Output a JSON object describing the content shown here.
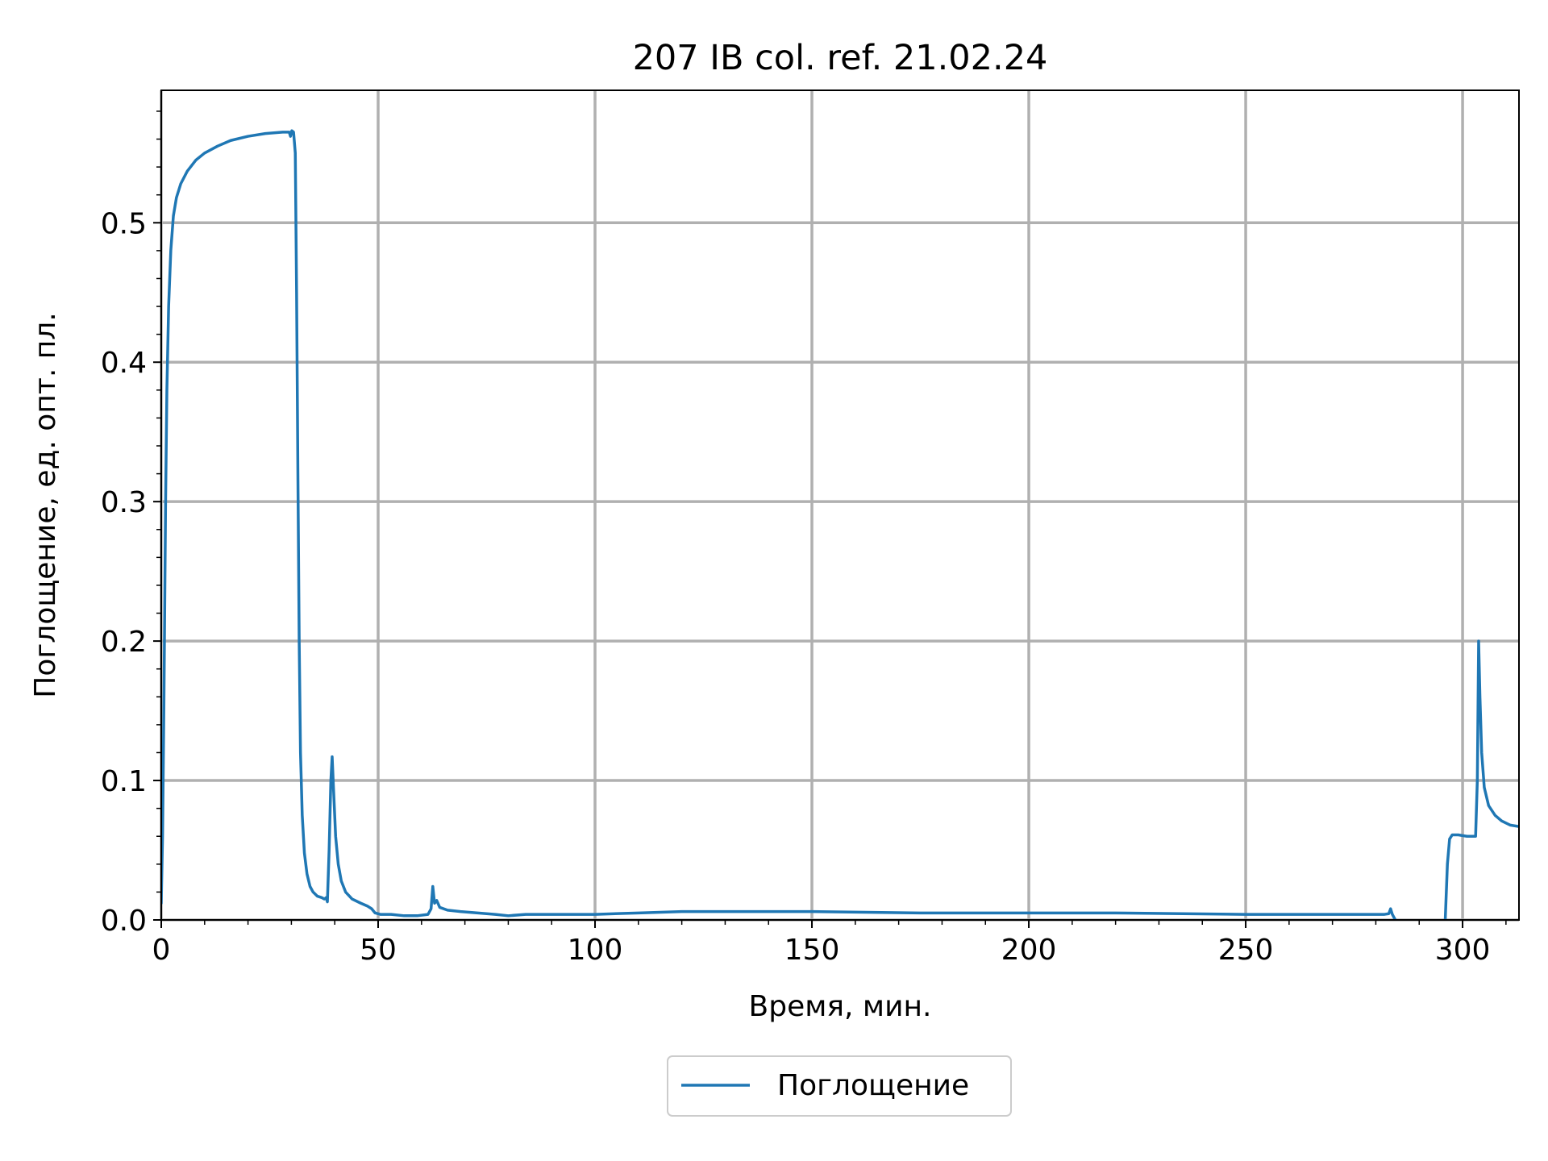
{
  "chart_data": {
    "type": "line",
    "title": "207 IB col. ref. 21.02.24",
    "xlabel": "Время, мин.",
    "ylabel": "Поглощение, ед. опт. пл.",
    "xlim": [
      0,
      313
    ],
    "ylim": [
      0,
      0.595
    ],
    "xticks": [
      0,
      50,
      100,
      150,
      200,
      250,
      300
    ],
    "xtick_labels": [
      "0",
      "50",
      "100",
      "150",
      "200",
      "250",
      "300"
    ],
    "yticks": [
      0.0,
      0.1,
      0.2,
      0.3,
      0.4,
      0.5
    ],
    "ytick_labels": [
      "0.0",
      "0.1",
      "0.2",
      "0.3",
      "0.4",
      "0.5"
    ],
    "x_minor_step": 10,
    "y_minor_step": 0.02,
    "grid": true,
    "legend_position": "bottom-center",
    "colors": {
      "series": "#1f77b4",
      "grid": "#b0b0b0",
      "axis": "#000000"
    },
    "series": [
      {
        "name": "Поглощение",
        "segments": [
          [
            [
              0.0,
              0.012
            ],
            [
              0.3,
              0.06
            ],
            [
              0.6,
              0.15
            ],
            [
              1.0,
              0.3
            ],
            [
              1.3,
              0.38
            ],
            [
              1.7,
              0.44
            ],
            [
              2.2,
              0.48
            ],
            [
              2.8,
              0.505
            ],
            [
              3.5,
              0.518
            ],
            [
              4.5,
              0.528
            ],
            [
              6.0,
              0.537
            ],
            [
              8.0,
              0.545
            ],
            [
              10.0,
              0.55
            ],
            [
              13.0,
              0.555
            ],
            [
              16.0,
              0.559
            ],
            [
              20.0,
              0.562
            ],
            [
              24.0,
              0.564
            ],
            [
              28.0,
              0.565
            ],
            [
              29.5,
              0.565
            ],
            [
              29.8,
              0.562
            ],
            [
              30.1,
              0.566
            ],
            [
              30.5,
              0.565
            ],
            [
              30.9,
              0.55
            ],
            [
              31.2,
              0.45
            ],
            [
              31.5,
              0.32
            ],
            [
              31.8,
              0.2
            ],
            [
              32.1,
              0.12
            ],
            [
              32.5,
              0.075
            ],
            [
              33.0,
              0.048
            ],
            [
              33.6,
              0.033
            ],
            [
              34.3,
              0.024
            ],
            [
              35.0,
              0.02
            ],
            [
              36.0,
              0.017
            ],
            [
              37.0,
              0.016
            ],
            [
              37.6,
              0.015
            ],
            [
              38.0,
              0.016
            ],
            [
              38.3,
              0.013
            ],
            [
              38.7,
              0.05
            ],
            [
              39.1,
              0.1
            ],
            [
              39.4,
              0.117
            ],
            [
              39.7,
              0.095
            ],
            [
              40.2,
              0.06
            ],
            [
              40.8,
              0.04
            ],
            [
              41.5,
              0.028
            ],
            [
              42.5,
              0.02
            ],
            [
              44.0,
              0.015
            ],
            [
              46.0,
              0.012
            ],
            [
              47.5,
              0.01
            ],
            [
              48.5,
              0.008
            ],
            [
              49.3,
              0.005
            ],
            [
              50.5,
              0.004
            ],
            [
              53.0,
              0.004
            ],
            [
              56.0,
              0.003
            ],
            [
              59.0,
              0.003
            ],
            [
              61.5,
              0.004
            ],
            [
              62.2,
              0.008
            ],
            [
              62.6,
              0.024
            ],
            [
              63.0,
              0.012
            ],
            [
              63.5,
              0.014
            ],
            [
              64.2,
              0.009
            ],
            [
              66.0,
              0.007
            ],
            [
              69.0,
              0.006
            ],
            [
              73.0,
              0.005
            ],
            [
              77.0,
              0.004
            ],
            [
              80.0,
              0.003
            ],
            [
              84.0,
              0.004
            ],
            [
              90.0,
              0.004
            ],
            [
              100.0,
              0.004
            ],
            [
              110.0,
              0.005
            ],
            [
              120.0,
              0.006
            ],
            [
              130.0,
              0.006
            ],
            [
              150.0,
              0.006
            ],
            [
              175.0,
              0.005
            ],
            [
              200.0,
              0.005
            ],
            [
              220.0,
              0.005
            ],
            [
              250.0,
              0.004
            ],
            [
              265.0,
              0.004
            ],
            [
              275.0,
              0.004
            ],
            [
              282.0,
              0.004
            ],
            [
              283.0,
              0.0045
            ],
            [
              283.4,
              0.008
            ],
            [
              283.8,
              0.004
            ],
            [
              284.5,
              0.0
            ]
          ],
          [
            [
              296.0,
              0.0
            ],
            [
              296.5,
              0.04
            ],
            [
              297.0,
              0.058
            ],
            [
              297.6,
              0.061
            ],
            [
              299.0,
              0.061
            ],
            [
              301.0,
              0.06
            ],
            [
              303.0,
              0.06
            ],
            [
              303.4,
              0.1
            ],
            [
              303.7,
              0.2
            ],
            [
              304.0,
              0.16
            ],
            [
              304.4,
              0.12
            ],
            [
              305.0,
              0.095
            ],
            [
              306.0,
              0.082
            ],
            [
              307.5,
              0.075
            ],
            [
              309.0,
              0.071
            ],
            [
              311.0,
              0.068
            ],
            [
              313.0,
              0.067
            ]
          ]
        ]
      }
    ]
  }
}
